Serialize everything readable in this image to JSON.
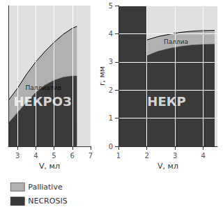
{
  "chart_data": [
    {
      "type": "area",
      "xlabel": "V, мл",
      "xlim": [
        2.5,
        7.0
      ],
      "ylim": [
        2.5,
        4.8
      ],
      "xticks": [
        3,
        4,
        5,
        6,
        7
      ],
      "yticks": [],
      "tick_labels": "x",
      "grid": true,
      "legend": "bottom left",
      "fill_start": 2.5,
      "series": [
        {
          "name": "Palliative",
          "color": "#b0b0b0",
          "line_style": "solid",
          "x": [
            2.5,
            3.0,
            3.5,
            4.0,
            4.5,
            5.0,
            5.5,
            6.0,
            6.25
          ],
          "values": [
            3.25,
            3.45,
            3.68,
            3.88,
            4.05,
            4.2,
            4.33,
            4.43,
            4.46
          ],
          "annotation": {
            "text": "Паллиатив",
            "x": 3.4375,
            "y": 3.455
          }
        },
        {
          "name": "NECROSIS",
          "color": "#3a3a3a",
          "line_style": "dotted",
          "x": [
            2.5,
            3.0,
            3.5,
            4.0,
            4.5,
            5.0,
            5.5,
            6.0,
            6.25
          ],
          "values": [
            2.88,
            3.05,
            3.22,
            3.38,
            3.5,
            3.58,
            3.63,
            3.65,
            3.65
          ],
          "annotation": {
            "text": "НЕКРОЗ",
            "x": 4.375,
            "y": 3.236
          }
        }
      ]
    },
    {
      "type": "area",
      "xlabel": "V, мл",
      "ylabel": "r, мм",
      "xlim": [
        1,
        4.5
      ],
      "ylim": [
        0,
        5
      ],
      "xticks": [
        1,
        2,
        3,
        4
      ],
      "yticks": [
        0,
        1,
        2,
        3,
        4,
        5
      ],
      "grid": true,
      "fill_start": 2.0,
      "series": [
        {
          "name": "Palliative",
          "color": "#b0b0b0",
          "line_style": "solid",
          "x": [
            2.0,
            2.4,
            2.8,
            3.2,
            3.6,
            4.0,
            4.4
          ],
          "values": [
            3.78,
            3.9,
            3.98,
            4.05,
            4.09,
            4.11,
            4.12
          ],
          "annotation": {
            "text": "Паллиа",
            "x": 2.6,
            "y": 3.715
          }
        },
        {
          "name": "NECROSIS",
          "color": "#3a3a3a",
          "line_style": "dotted",
          "x": [
            2.0,
            2.4,
            2.8,
            3.2,
            3.6,
            4.0,
            4.4
          ],
          "values": [
            3.22,
            3.38,
            3.48,
            3.55,
            3.6,
            3.62,
            3.63
          ],
          "annotation": {
            "text": "НЕКР",
            "x": 2.7,
            "y": 1.6
          }
        }
      ]
    }
  ]
}
